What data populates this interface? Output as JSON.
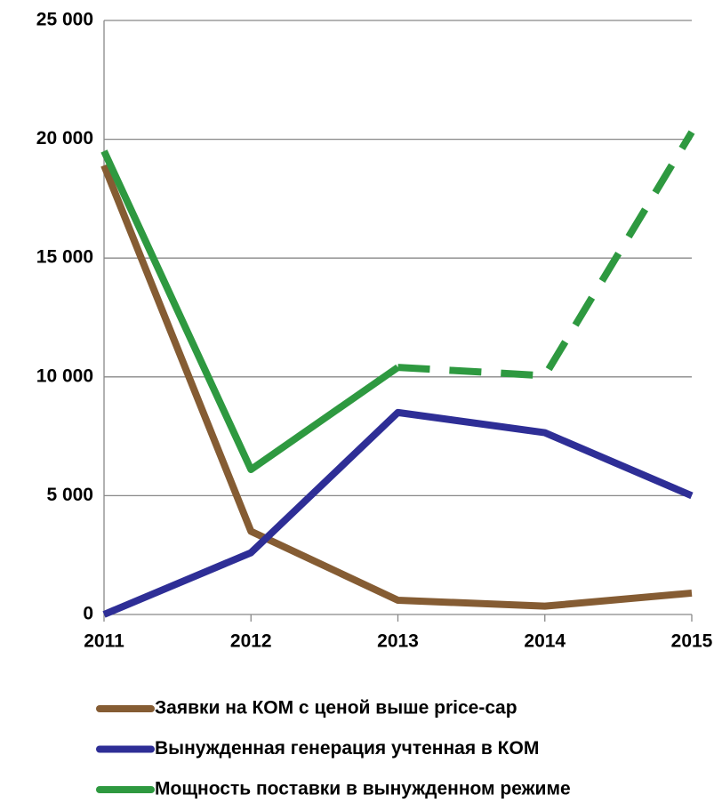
{
  "chart_data": {
    "type": "line",
    "categories": [
      "2011",
      "2012",
      "2013",
      "2014",
      "2015"
    ],
    "series": [
      {
        "name": "Заявки на КОМ с ценой выше price-cap",
        "color": "#855c33",
        "values": [
          18900,
          3500,
          600,
          350,
          900
        ]
      },
      {
        "name": "Вынужденная генерация учтенная в КОМ",
        "color": "#2e2e96",
        "values": [
          0,
          2600,
          8500,
          7650,
          5000
        ]
      },
      {
        "name": "Мощность поставки в вынужденном режиме",
        "color": "#2e9940",
        "values": [
          19500,
          6100,
          10400,
          10050,
          20300
        ],
        "dashed_from": 2
      }
    ],
    "ylim": [
      0,
      25000
    ],
    "yticks": [
      {
        "value": 0,
        "label": "0"
      },
      {
        "value": 5000,
        "label": "5 000"
      },
      {
        "value": 10000,
        "label": "10 000"
      },
      {
        "value": 15000,
        "label": "15 000"
      },
      {
        "value": 20000,
        "label": "20 000"
      },
      {
        "value": 25000,
        "label": "25 000"
      }
    ],
    "grid": true
  }
}
